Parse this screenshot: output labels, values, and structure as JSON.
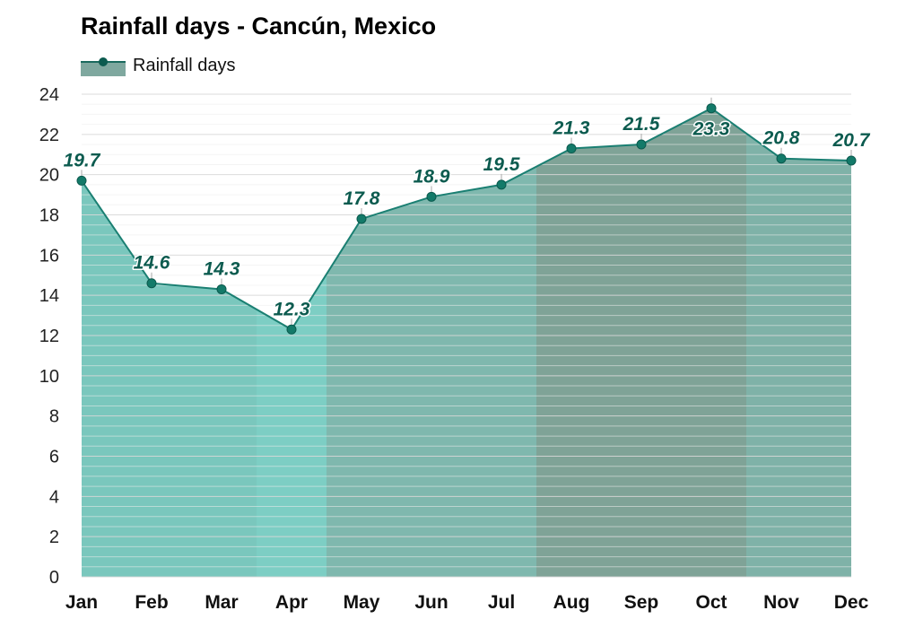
{
  "chart_data": {
    "type": "area",
    "title": "Rainfall days - Cancún, Mexico",
    "categories": [
      "Jan",
      "Feb",
      "Mar",
      "Apr",
      "May",
      "Jun",
      "Jul",
      "Aug",
      "Sep",
      "Oct",
      "Nov",
      "Dec"
    ],
    "series": [
      {
        "name": "Rainfall days",
        "values": [
          19.7,
          14.6,
          14.3,
          12.3,
          17.8,
          18.9,
          19.5,
          21.3,
          21.5,
          23.3,
          20.8,
          20.7
        ]
      }
    ],
    "data_labels": [
      "19.7",
      "14.6",
      "14.3",
      "12.3",
      "17.8",
      "18.9",
      "19.5",
      "21.3",
      "21.5",
      "23.3",
      "20.8",
      "20.7"
    ],
    "ylim": [
      0,
      24
    ],
    "yticks": [
      "0",
      "2",
      "4",
      "6",
      "8",
      "10",
      "12",
      "14",
      "16",
      "18",
      "20",
      "22",
      "24"
    ],
    "grid": true,
    "legend_position": "top-left"
  },
  "colors": {
    "line": "#1a7f72",
    "marker": "#137a69",
    "label": "#0c5b4f",
    "legend_swatch": "#7fa89f",
    "band_fills": [
      "#7ac7bd",
      "#7ac7bd",
      "#7ac7bd",
      "#7dcec4",
      "#7fb8ae",
      "#7fb8ae",
      "#7fb8ae",
      "#7fa397",
      "#7fa397",
      "#7fa397",
      "#7fb2a8",
      "#7fb2a8"
    ]
  }
}
